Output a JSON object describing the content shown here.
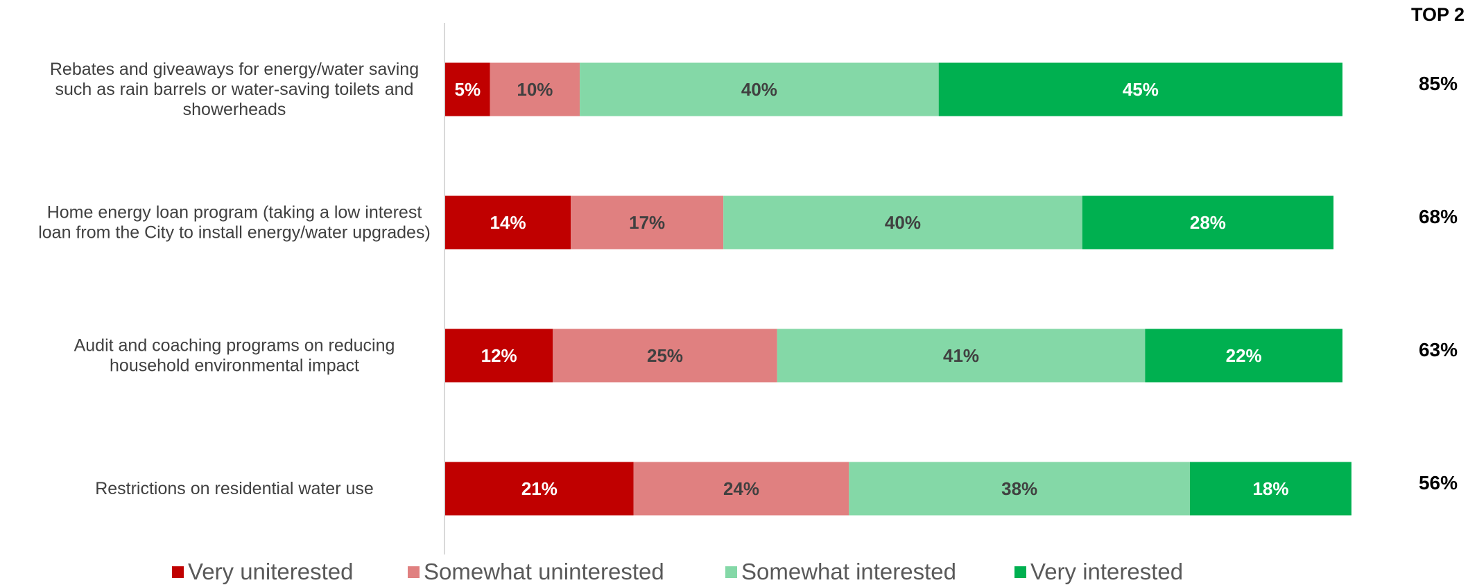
{
  "chart_data": {
    "type": "bar",
    "orientation": "horizontal",
    "stacked": true,
    "categories": [
      "Rebates and giveaways for energy/water saving such as rain barrels or water-saving toilets and showerheads",
      "Home energy loan program (taking a low interest loan from the City to install energy/water upgrades)",
      "Audit and coaching programs on reducing household environmental impact",
      "Restrictions on residential water use"
    ],
    "category_lines": [
      [
        "Rebates and giveaways for energy/water saving",
        "such as rain barrels or water-saving toilets and",
        "showerheads"
      ],
      [
        "Home energy loan program (taking a low interest",
        "loan from the City to install energy/water upgrades)"
      ],
      [
        "Audit and coaching programs on reducing",
        "household environmental impact"
      ],
      [
        "Restrictions on residential water use"
      ]
    ],
    "series": [
      {
        "name": "Very uniterested",
        "color": "#C00000",
        "label_color": "#FFFFFF",
        "values": [
          5,
          14,
          12,
          21
        ]
      },
      {
        "name": "Somewhat uninterested",
        "color": "#E08080",
        "label_color": "#404040",
        "values": [
          10,
          17,
          25,
          24
        ]
      },
      {
        "name": "Somewhat interested",
        "color": "#84D8A7",
        "label_color": "#404040",
        "values": [
          40,
          40,
          41,
          38
        ]
      },
      {
        "name": "Very interested",
        "color": "#00B050",
        "label_color": "#FFFFFF",
        "values": [
          45,
          28,
          22,
          18
        ]
      }
    ],
    "value_suffix": "%",
    "top2_header": "TOP 2",
    "top2_values": [
      "85%",
      "68%",
      "63%",
      "56%"
    ],
    "legend_position": "bottom",
    "grid": false,
    "xlim": [
      0,
      100
    ]
  }
}
